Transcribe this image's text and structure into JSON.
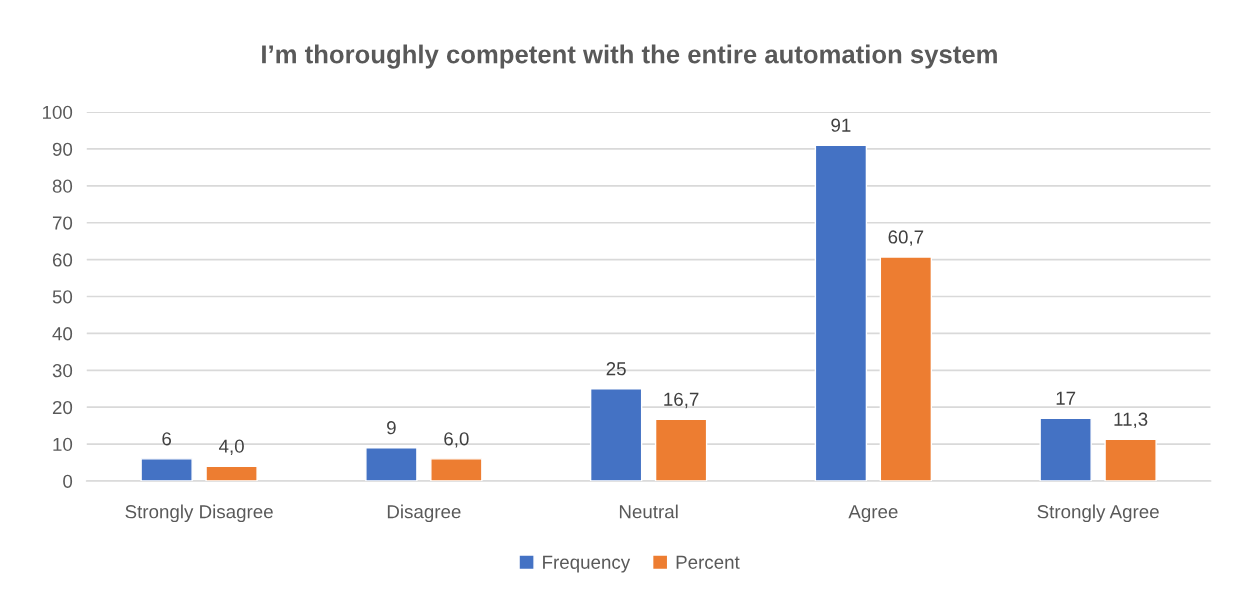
{
  "chart_data": {
    "type": "bar",
    "title": "I’m thoroughly competent with the entire automation system",
    "categories": [
      "Strongly Disagree",
      "Disagree",
      "Neutral",
      "Agree",
      "Strongly Agree"
    ],
    "series": [
      {
        "name": "Frequency",
        "color": "#4472c4",
        "values": [
          6,
          9,
          25,
          91,
          17
        ],
        "value_labels": [
          "6",
          "9",
          "25",
          "91",
          "17"
        ]
      },
      {
        "name": "Percent",
        "color": "#ed7d31",
        "values": [
          4.0,
          6.0,
          16.7,
          60.7,
          11.3
        ],
        "value_labels": [
          "4,0",
          "6,0",
          "16,7",
          "60,7",
          "11,3"
        ]
      }
    ],
    "ylim": [
      0,
      100
    ],
    "yticks": [
      0,
      10,
      20,
      30,
      40,
      50,
      60,
      70,
      80,
      90,
      100
    ],
    "grid": "y",
    "legend": "bottom"
  }
}
